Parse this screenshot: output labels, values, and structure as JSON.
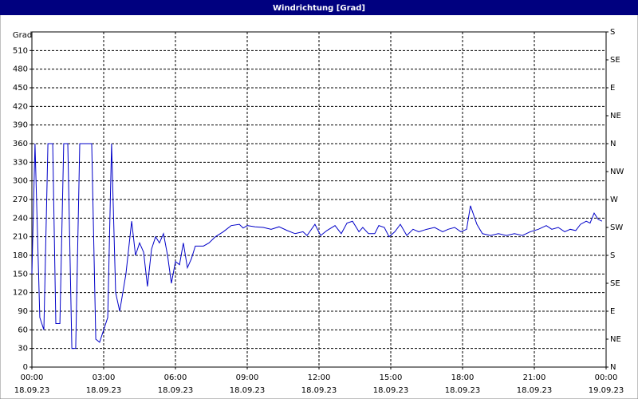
{
  "chart_data": {
    "type": "line",
    "title": "Windrichtung [Grad]",
    "y_label": "Grad",
    "color": "#0000c8",
    "grid": true,
    "xlim": [
      0,
      24
    ],
    "xticks": [
      {
        "value": 0,
        "label": "00:00",
        "date": "18.09.23"
      },
      {
        "value": 3,
        "label": "03:00",
        "date": "18.09.23"
      },
      {
        "value": 6,
        "label": "06:00",
        "date": "18.09.23"
      },
      {
        "value": 9,
        "label": "09:00",
        "date": "18.09.23"
      },
      {
        "value": 12,
        "label": "12:00",
        "date": "18.09.23"
      },
      {
        "value": 15,
        "label": "15:00",
        "date": "18.09.23"
      },
      {
        "value": 18,
        "label": "18:00",
        "date": "18.09.23"
      },
      {
        "value": 21,
        "label": "21:00",
        "date": "18.09.23"
      },
      {
        "value": 24,
        "label": "00:00",
        "date": "19.09.23"
      }
    ],
    "ylim": [
      0,
      540
    ],
    "yticks": [
      0,
      30,
      60,
      90,
      120,
      150,
      180,
      210,
      240,
      270,
      300,
      330,
      360,
      390,
      420,
      450,
      480,
      510
    ],
    "y2lim": [
      0,
      540
    ],
    "y2ticks": [
      {
        "value": 0,
        "label": "N"
      },
      {
        "value": 45,
        "label": "NE"
      },
      {
        "value": 90,
        "label": "E"
      },
      {
        "value": 135,
        "label": "SE"
      },
      {
        "value": 180,
        "label": "S"
      },
      {
        "value": 225,
        "label": "SW"
      },
      {
        "value": 270,
        "label": "W"
      },
      {
        "value": 315,
        "label": "NW"
      },
      {
        "value": 360,
        "label": "N"
      },
      {
        "value": 405,
        "label": "NE"
      },
      {
        "value": 450,
        "label": "E"
      },
      {
        "value": 495,
        "label": "SE"
      },
      {
        "value": 540,
        "label": "S"
      }
    ],
    "x": [
      0.0,
      0.13,
      0.33,
      0.5,
      0.67,
      0.87,
      1.0,
      1.17,
      1.33,
      1.5,
      1.67,
      1.83,
      2.0,
      2.5,
      2.67,
      2.83,
      3.17,
      3.33,
      3.5,
      3.67,
      3.93,
      4.17,
      4.33,
      4.5,
      4.67,
      4.83,
      5.0,
      5.17,
      5.33,
      5.5,
      5.67,
      5.83,
      6.0,
      6.17,
      6.33,
      6.5,
      6.67,
      6.83,
      7.17,
      7.4,
      7.67,
      8.0,
      8.33,
      8.67,
      8.83,
      9.0,
      9.33,
      9.67,
      10.0,
      10.33,
      10.67,
      11.0,
      11.33,
      11.5,
      11.83,
      12.07,
      12.33,
      12.67,
      12.93,
      13.17,
      13.4,
      13.67,
      13.83,
      14.07,
      14.33,
      14.5,
      14.73,
      14.93,
      15.17,
      15.4,
      15.67,
      15.93,
      16.17,
      16.5,
      16.83,
      17.17,
      17.4,
      17.67,
      17.93,
      18.17,
      18.33,
      18.6,
      18.83,
      19.17,
      19.5,
      19.83,
      20.17,
      20.5,
      20.83,
      21.17,
      21.5,
      21.73,
      22.0,
      22.27,
      22.5,
      22.73,
      22.93,
      23.17,
      23.33,
      23.5,
      23.67,
      23.83
    ],
    "values": [
      150,
      360,
      80,
      60,
      360,
      360,
      70,
      70,
      360,
      360,
      30,
      30,
      360,
      360,
      45,
      40,
      80,
      360,
      120,
      90,
      150,
      235,
      180,
      200,
      185,
      130,
      190,
      210,
      200,
      215,
      180,
      135,
      170,
      165,
      200,
      160,
      175,
      195,
      195,
      200,
      210,
      218,
      228,
      230,
      224,
      228,
      226,
      225,
      222,
      226,
      220,
      215,
      218,
      212,
      230,
      212,
      220,
      228,
      215,
      232,
      235,
      218,
      225,
      215,
      215,
      228,
      225,
      210,
      218,
      230,
      212,
      222,
      218,
      222,
      225,
      218,
      222,
      225,
      218,
      222,
      260,
      230,
      215,
      212,
      215,
      212,
      215,
      212,
      218,
      222,
      228,
      222,
      225,
      218,
      222,
      220,
      230,
      235,
      232,
      248,
      238,
      235
    ]
  }
}
